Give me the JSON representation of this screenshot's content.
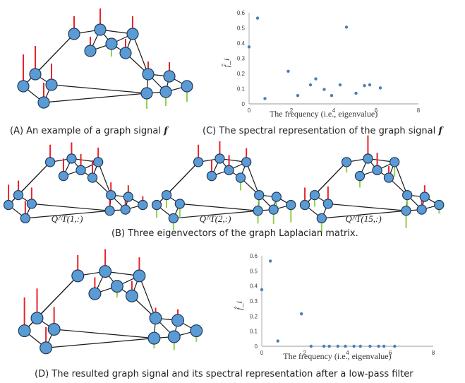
{
  "captions": {
    "a": "(A) An example of a graph signal ",
    "a_sym": "f",
    "c": "(C) The spectral representation of the graph signal ",
    "c_sym": "f",
    "b": "(B) Three eigenvectors of the graph Laplacian matrix.",
    "d": "(D) The resulted graph signal and its spectral representation after a low-pass filter"
  },
  "eigenvector_labels": [
    "Q^T(1,:)",
    "Q^T(2,:)",
    "Q^T(15,:)"
  ],
  "colors": {
    "node": "#5b9bd5",
    "positive": "#e8232a",
    "negative": "#92d050",
    "point": "#4a7ebb",
    "edge": "#1a1a1a"
  },
  "chart_data": [
    {
      "type": "scatter",
      "title": "",
      "xlabel": "The frequency (i.e., eigenvalue)",
      "ylabel": "f̂_i",
      "xlim": [
        0,
        8
      ],
      "ylim": [
        0,
        0.6
      ],
      "xticks": [
        "0",
        "2",
        "4",
        "6",
        "8"
      ],
      "yticks": [
        "0",
        "0.1",
        "0.2",
        "0.3",
        "0.4",
        "0.5",
        "0.6"
      ],
      "x": [
        0,
        0.4,
        0.75,
        1.85,
        2.3,
        2.9,
        3.15,
        3.55,
        3.9,
        4.3,
        4.6,
        5.05,
        5.45,
        5.7,
        6.2
      ],
      "y": [
        0.375,
        0.565,
        0.035,
        0.215,
        0.055,
        0.125,
        0.165,
        0.095,
        0.055,
        0.125,
        0.505,
        0.07,
        0.12,
        0.125,
        0.105
      ]
    },
    {
      "type": "scatter",
      "title": "",
      "xlabel": "The frequency (i.e., eigenvalue)",
      "ylabel": "f̂_i",
      "xlim": [
        0,
        8
      ],
      "ylim": [
        0,
        0.6
      ],
      "xticks": [
        "0",
        "2",
        "4",
        "6",
        "8"
      ],
      "yticks": [
        "0",
        "0.1",
        "0.2",
        "0.3",
        "0.4",
        "0.5",
        "0.6"
      ],
      "x": [
        0,
        0.4,
        0.75,
        1.85,
        2.3,
        2.9,
        3.15,
        3.55,
        3.9,
        4.3,
        4.6,
        5.05,
        5.45,
        5.7,
        6.2
      ],
      "y": [
        0.375,
        0.565,
        0.035,
        0.215,
        0,
        0,
        0,
        0,
        0,
        0,
        0,
        0,
        0,
        0,
        0
      ]
    }
  ]
}
